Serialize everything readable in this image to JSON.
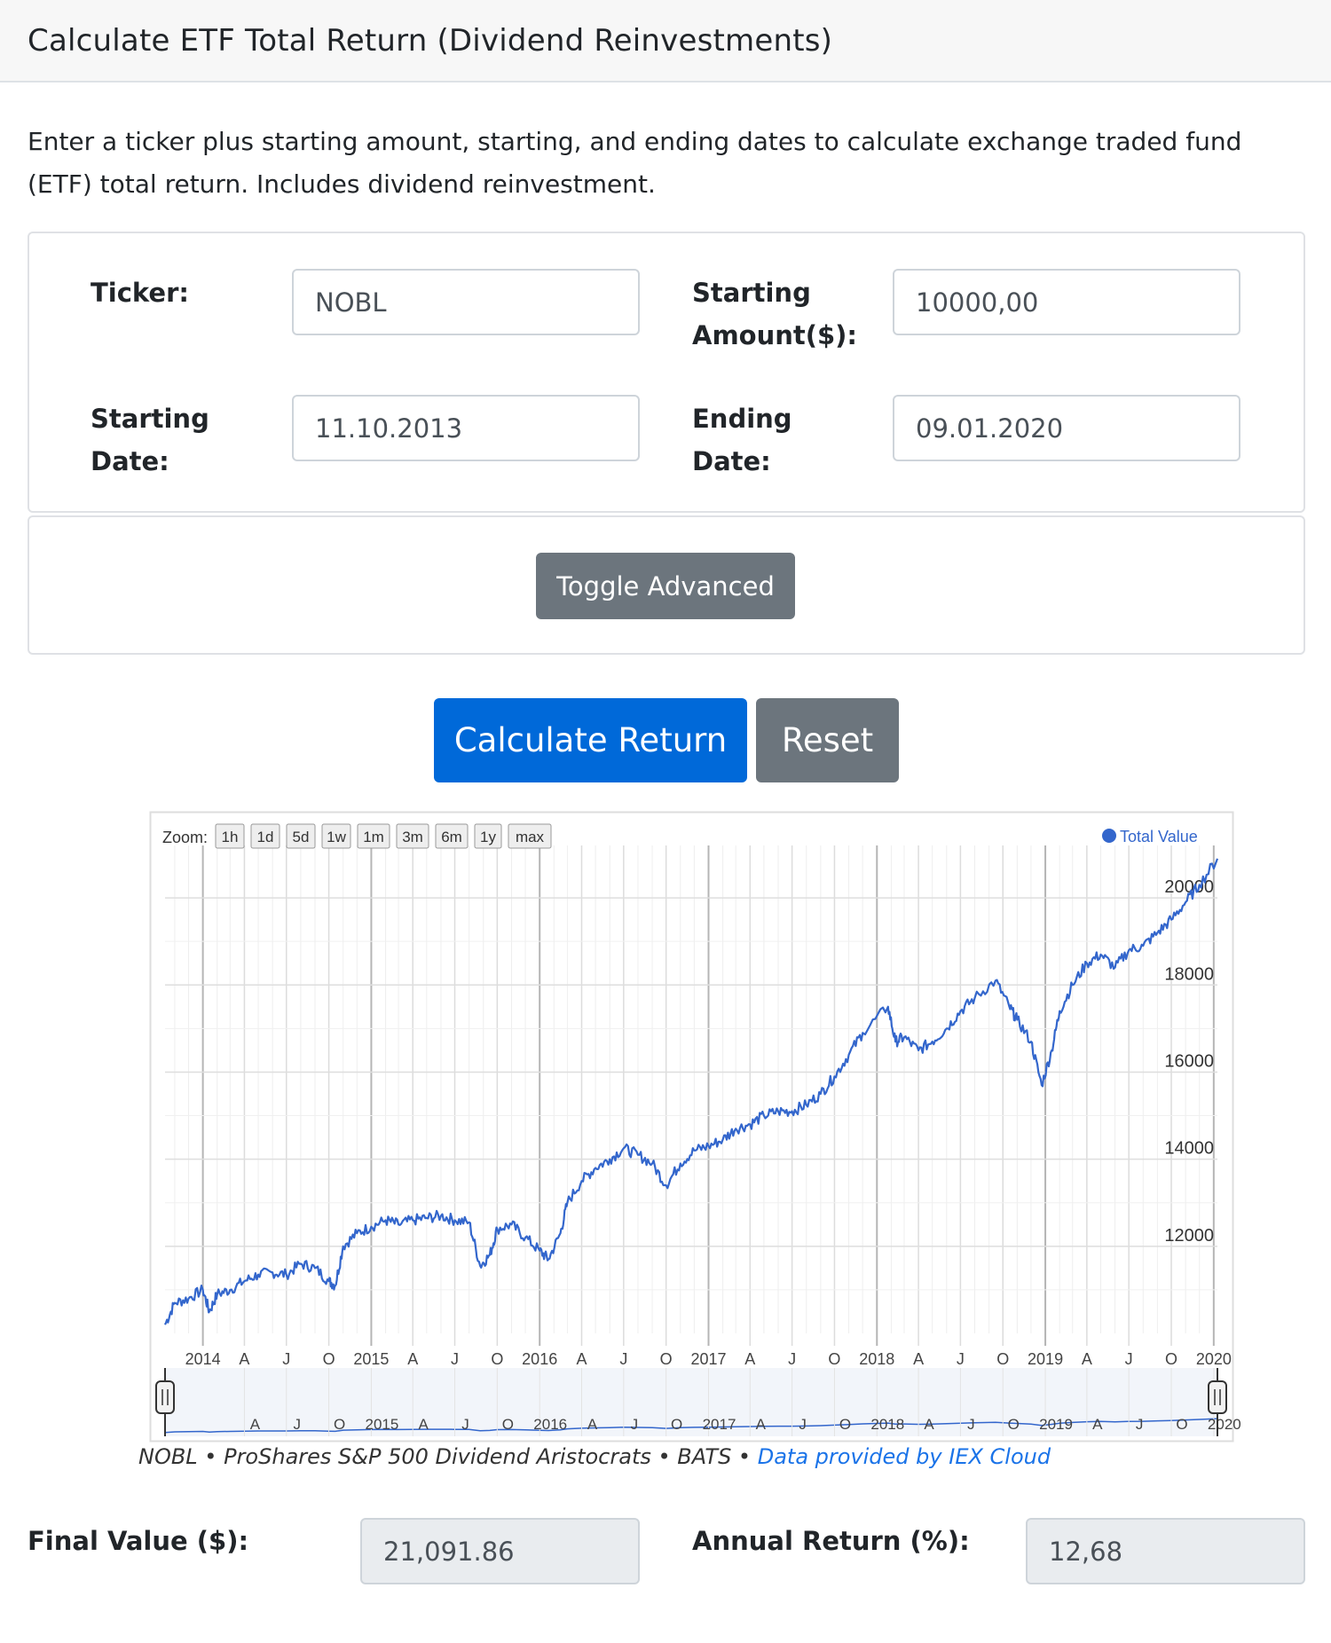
{
  "header": {
    "title": "Calculate ETF Total Return (Dividend Reinvestments)"
  },
  "intro": {
    "text": "Enter a ticker plus starting amount, starting, and ending dates to calculate exchange traded fund (ETF) total return. Includes dividend reinvestment."
  },
  "form": {
    "ticker_label": "Ticker:",
    "ticker_value": "NOBL",
    "amount_label_1": "Starting",
    "amount_label_2": "Amount($):",
    "amount_value": "10000,00",
    "start_label_1": "Starting",
    "start_label_2": "Date:",
    "start_value": "11.10.2013",
    "end_label_1": "Ending",
    "end_label_2": "Date:",
    "end_value": "09.01.2020"
  },
  "buttons": {
    "toggle_advanced": "Toggle Advanced",
    "calculate": "Calculate Return",
    "reset": "Reset"
  },
  "chart": {
    "zoom_label": "Zoom:",
    "zoom_buttons": [
      "1h",
      "1d",
      "5d",
      "1w",
      "1m",
      "3m",
      "6m",
      "1y",
      "max"
    ],
    "legend_label": "Total Value",
    "line_color": "#3366cc",
    "x_ticks": [
      "2014",
      "A",
      "J",
      "O",
      "2015",
      "A",
      "J",
      "O",
      "2016",
      "A",
      "J",
      "O",
      "2017",
      "A",
      "J",
      "O",
      "2018",
      "A",
      "J",
      "O",
      "2019",
      "A",
      "J",
      "O",
      "2020"
    ],
    "navigator_ticks": [
      "A",
      "J",
      "O",
      "2015",
      "A",
      "J",
      "O",
      "2016",
      "A",
      "J",
      "O",
      "2017",
      "A",
      "J",
      "O",
      "2018",
      "A",
      "J",
      "O",
      "2019",
      "A",
      "J",
      "O",
      "2020"
    ]
  },
  "chart_data": {
    "type": "line",
    "title": "",
    "xlabel": "",
    "ylabel": "",
    "ylim": [
      10000,
      21000
    ],
    "y_ticks": [
      12000,
      14000,
      16000,
      18000,
      20000
    ],
    "grid": true,
    "legend_position": "top-right",
    "series": [
      {
        "name": "Total Value",
        "x": [
          "2013-10-11",
          "2013-11-01",
          "2013-12-01",
          "2014-01-01",
          "2014-01-15",
          "2014-02-01",
          "2014-03-01",
          "2014-04-01",
          "2014-05-01",
          "2014-06-01",
          "2014-07-01",
          "2014-08-01",
          "2014-09-01",
          "2014-10-01",
          "2014-10-15",
          "2014-11-01",
          "2014-12-01",
          "2015-01-01",
          "2015-02-01",
          "2015-03-01",
          "2015-04-01",
          "2015-05-01",
          "2015-06-01",
          "2015-07-01",
          "2015-08-01",
          "2015-08-25",
          "2015-09-15",
          "2015-10-01",
          "2015-11-01",
          "2015-12-01",
          "2016-01-01",
          "2016-01-20",
          "2016-02-15",
          "2016-03-01",
          "2016-04-01",
          "2016-05-01",
          "2016-06-01",
          "2016-07-01",
          "2016-08-01",
          "2016-09-01",
          "2016-10-01",
          "2016-11-01",
          "2016-12-01",
          "2017-01-01",
          "2017-02-01",
          "2017-03-01",
          "2017-04-01",
          "2017-05-01",
          "2017-06-01",
          "2017-07-01",
          "2017-08-01",
          "2017-09-01",
          "2017-10-01",
          "2017-11-01",
          "2017-12-01",
          "2018-01-25",
          "2018-02-10",
          "2018-03-01",
          "2018-04-01",
          "2018-05-01",
          "2018-06-01",
          "2018-07-01",
          "2018-08-01",
          "2018-09-15",
          "2018-10-15",
          "2018-11-01",
          "2018-12-01",
          "2018-12-24",
          "2019-01-15",
          "2019-02-01",
          "2019-03-01",
          "2019-04-01",
          "2019-05-01",
          "2019-06-01",
          "2019-07-01",
          "2019-08-01",
          "2019-09-01",
          "2019-10-01",
          "2019-11-01",
          "2019-12-01",
          "2020-01-09"
        ],
        "values": [
          10200,
          10700,
          10800,
          11000,
          10500,
          10900,
          11000,
          11200,
          11350,
          11400,
          11350,
          11600,
          11500,
          11200,
          11100,
          12000,
          12300,
          12450,
          12600,
          12500,
          12600,
          12650,
          12700,
          12600,
          12550,
          11550,
          11800,
          12400,
          12500,
          12200,
          11900,
          11700,
          12300,
          13000,
          13500,
          13800,
          14000,
          14250,
          14100,
          13900,
          13400,
          13900,
          14200,
          14300,
          14450,
          14700,
          14800,
          15000,
          15100,
          15100,
          15250,
          15500,
          15900,
          16400,
          16900,
          17500,
          16700,
          16800,
          16500,
          16700,
          17000,
          17400,
          17700,
          18100,
          17500,
          17200,
          16700,
          15700,
          16500,
          17400,
          18000,
          18500,
          18700,
          18400,
          18800,
          18900,
          19200,
          19500,
          19900,
          20300,
          20900
        ]
      }
    ],
    "navigator": {
      "range_start": "2013-10-11",
      "range_end": "2020-01-09"
    }
  },
  "caption": {
    "text": "NOBL • ProShares S&P 500 Dividend Aristocrats • BATS • ",
    "link": "Data provided by IEX Cloud"
  },
  "results": {
    "final_label": "Final Value ($):",
    "final_value": "21,091.86",
    "annual_label": "Annual Return (%):",
    "annual_value": "12,68"
  }
}
